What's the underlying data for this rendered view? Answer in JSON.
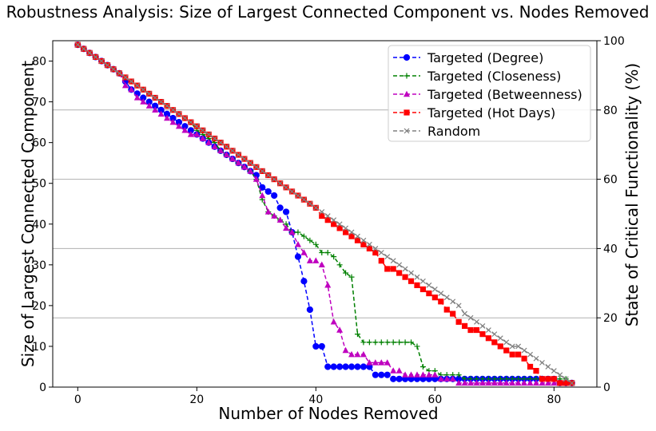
{
  "chart_data": {
    "type": "line",
    "title": "Robustness Analysis: Size of Largest Connected Component vs. Nodes Removed",
    "xlabel": "Number of Nodes Removed",
    "ylabel": "Size of Largest Connected Component",
    "y2label": "State of Critical Functionality (%)",
    "xlim": [
      -4.2,
      87.2
    ],
    "ylim": [
      0,
      85
    ],
    "y2lim": [
      0,
      100
    ],
    "xticks": [
      0,
      20,
      40,
      60,
      80
    ],
    "yticks": [
      0,
      10,
      20,
      30,
      40,
      50,
      60,
      70,
      80
    ],
    "y2ticks": [
      0,
      20,
      40,
      60,
      80,
      100
    ],
    "grid": "horizontal lines at right-axis ticks",
    "legend_position": "top-right",
    "series": [
      {
        "name": "Targeted (Degree)",
        "color": "#0000ff",
        "marker": "circle",
        "x": [
          0,
          1,
          2,
          3,
          4,
          5,
          6,
          7,
          8,
          9,
          10,
          11,
          12,
          13,
          14,
          15,
          16,
          17,
          18,
          19,
          20,
          21,
          22,
          23,
          24,
          25,
          26,
          27,
          28,
          29,
          30,
          31,
          32,
          33,
          34,
          35,
          36,
          37,
          38,
          39,
          40,
          41,
          42,
          43,
          44,
          45,
          46,
          47,
          48,
          49,
          50,
          51,
          52,
          53,
          54,
          55,
          56,
          57,
          58,
          59,
          60,
          61,
          62,
          63,
          64,
          65,
          66,
          67,
          68,
          69,
          70,
          71,
          72,
          73,
          74,
          75,
          76,
          77,
          78,
          79,
          80,
          81,
          82,
          83
        ],
        "y": [
          84,
          83,
          82,
          81,
          80,
          79,
          78,
          77,
          75,
          73,
          72,
          71,
          70,
          69,
          68,
          67,
          66,
          65,
          64,
          63,
          62,
          61,
          60,
          59,
          58,
          57,
          56,
          55,
          54,
          53,
          52,
          49,
          48,
          47,
          44,
          43,
          38,
          32,
          26,
          19,
          10,
          10,
          5,
          5,
          5,
          5,
          5,
          5,
          5,
          5,
          3,
          3,
          3,
          2,
          2,
          2,
          2,
          2,
          2,
          2,
          2,
          2,
          2,
          2,
          2,
          2,
          2,
          2,
          2,
          2,
          2,
          2,
          2,
          2,
          2,
          2,
          2,
          2,
          2,
          2,
          2,
          1,
          1,
          1
        ]
      },
      {
        "name": "Targeted (Closeness)",
        "color": "#008000",
        "marker": "plus",
        "x": [
          0,
          1,
          2,
          3,
          4,
          5,
          6,
          7,
          8,
          9,
          10,
          11,
          12,
          13,
          14,
          15,
          16,
          17,
          18,
          19,
          20,
          21,
          22,
          23,
          24,
          25,
          26,
          27,
          28,
          29,
          30,
          31,
          32,
          33,
          34,
          35,
          36,
          37,
          38,
          39,
          40,
          41,
          42,
          43,
          44,
          45,
          46,
          47,
          48,
          49,
          50,
          51,
          52,
          53,
          54,
          55,
          56,
          57,
          58,
          59,
          60,
          61,
          62,
          63,
          64,
          65,
          66,
          67,
          68,
          69,
          70,
          71,
          72,
          73,
          74,
          75,
          76,
          77,
          78,
          79,
          80,
          81,
          82,
          83
        ],
        "y": [
          84,
          83,
          82,
          81,
          80,
          79,
          78,
          77,
          76,
          75,
          74,
          73,
          72,
          71,
          70,
          69,
          68,
          67,
          66,
          65,
          63,
          62,
          61,
          60,
          58,
          57,
          56,
          55,
          54,
          53,
          51,
          46,
          43,
          42,
          41,
          40,
          38,
          38,
          37,
          36,
          35,
          33,
          33,
          32,
          30,
          28,
          27,
          13,
          11,
          11,
          11,
          11,
          11,
          11,
          11,
          11,
          11,
          10,
          5,
          4,
          4,
          3,
          3,
          3,
          3,
          2,
          2,
          2,
          2,
          2,
          2,
          2,
          2,
          2,
          2,
          2,
          2,
          2,
          2,
          2,
          2,
          2,
          2,
          1
        ]
      },
      {
        "name": "Targeted (Betweenness)",
        "color": "#bf00bf",
        "marker": "triangle",
        "x": [
          0,
          1,
          2,
          3,
          4,
          5,
          6,
          7,
          8,
          9,
          10,
          11,
          12,
          13,
          14,
          15,
          16,
          17,
          18,
          19,
          20,
          21,
          22,
          23,
          24,
          25,
          26,
          27,
          28,
          29,
          30,
          31,
          32,
          33,
          34,
          35,
          36,
          37,
          38,
          39,
          40,
          41,
          42,
          43,
          44,
          45,
          46,
          47,
          48,
          49,
          50,
          51,
          52,
          53,
          54,
          55,
          56,
          57,
          58,
          59,
          60,
          61,
          62,
          63,
          64,
          65,
          66,
          67,
          68,
          69,
          70,
          71,
          72,
          73,
          74,
          75,
          76,
          77,
          78,
          79,
          80,
          81,
          82,
          83
        ],
        "y": [
          84,
          83,
          82,
          81,
          80,
          79,
          78,
          77,
          74,
          73,
          71,
          70,
          69,
          68,
          67,
          66,
          65,
          64,
          63,
          62,
          62,
          61,
          60,
          59,
          58,
          57,
          56,
          55,
          54,
          53,
          51,
          47,
          43,
          42,
          41,
          39,
          38,
          35,
          33,
          31,
          31,
          30,
          25,
          16,
          14,
          9,
          8,
          8,
          8,
          6,
          6,
          6,
          6,
          4,
          4,
          3,
          3,
          3,
          3,
          3,
          3,
          2,
          2,
          2,
          1,
          1,
          1,
          1,
          1,
          1,
          1,
          1,
          1,
          1,
          1,
          1,
          1,
          1,
          1,
          1,
          1,
          1,
          1,
          1
        ]
      },
      {
        "name": "Targeted (Hot Days)",
        "color": "#ff0000",
        "marker": "square",
        "x": [
          0,
          1,
          2,
          3,
          4,
          5,
          6,
          7,
          8,
          9,
          10,
          11,
          12,
          13,
          14,
          15,
          16,
          17,
          18,
          19,
          20,
          21,
          22,
          23,
          24,
          25,
          26,
          27,
          28,
          29,
          30,
          31,
          32,
          33,
          34,
          35,
          36,
          37,
          38,
          39,
          40,
          41,
          42,
          43,
          44,
          45,
          46,
          47,
          48,
          49,
          50,
          51,
          52,
          53,
          54,
          55,
          56,
          57,
          58,
          59,
          60,
          61,
          62,
          63,
          64,
          65,
          66,
          67,
          68,
          69,
          70,
          71,
          72,
          73,
          74,
          75,
          76,
          77,
          78,
          79,
          80,
          81,
          82,
          83
        ],
        "y": [
          84,
          83,
          82,
          81,
          80,
          79,
          78,
          77,
          76,
          75,
          74,
          73,
          72,
          71,
          70,
          69,
          68,
          67,
          66,
          65,
          64,
          63,
          62,
          61,
          60,
          59,
          58,
          57,
          56,
          55,
          54,
          53,
          52,
          51,
          50,
          49,
          48,
          47,
          46,
          45,
          44,
          42,
          41,
          40,
          39,
          38,
          37,
          36,
          35,
          34,
          33,
          31,
          29,
          29,
          28,
          27,
          26,
          25,
          24,
          23,
          22,
          21,
          19,
          18,
          16,
          15,
          14,
          14,
          13,
          12,
          11,
          10,
          9,
          8,
          8,
          7,
          5,
          4,
          2,
          2,
          2,
          1,
          1,
          1
        ]
      },
      {
        "name": "Random",
        "color": "#808080",
        "marker": "x",
        "x": [
          0,
          1,
          2,
          3,
          4,
          5,
          6,
          7,
          8,
          9,
          10,
          11,
          12,
          13,
          14,
          15,
          16,
          17,
          18,
          19,
          20,
          21,
          22,
          23,
          24,
          25,
          26,
          27,
          28,
          29,
          30,
          31,
          32,
          33,
          34,
          35,
          36,
          37,
          38,
          39,
          40,
          41,
          42,
          43,
          44,
          45,
          46,
          47,
          48,
          49,
          50,
          51,
          52,
          53,
          54,
          55,
          56,
          57,
          58,
          59,
          60,
          61,
          62,
          63,
          64,
          65,
          66,
          67,
          68,
          69,
          70,
          71,
          72,
          73,
          74,
          75,
          76,
          77,
          78,
          79,
          80,
          81,
          82,
          83
        ],
        "y": [
          84,
          83,
          82,
          81,
          80,
          79,
          78,
          77,
          76,
          75,
          74,
          73,
          72,
          71,
          70,
          69,
          68,
          67,
          66,
          65,
          64,
          63,
          62,
          61,
          60,
          59,
          58,
          57,
          56,
          55,
          54,
          53,
          52,
          51,
          50,
          49,
          48,
          47,
          46,
          45,
          44,
          43,
          42,
          41,
          40,
          39,
          38,
          37,
          36,
          35,
          34,
          33,
          32,
          31,
          30,
          29,
          28,
          27,
          26,
          25,
          24,
          23,
          22,
          21,
          20,
          18,
          17,
          16,
          15,
          14,
          13,
          12,
          11,
          10,
          10,
          9,
          8,
          7,
          6,
          5,
          4,
          3,
          2,
          1
        ]
      }
    ]
  }
}
